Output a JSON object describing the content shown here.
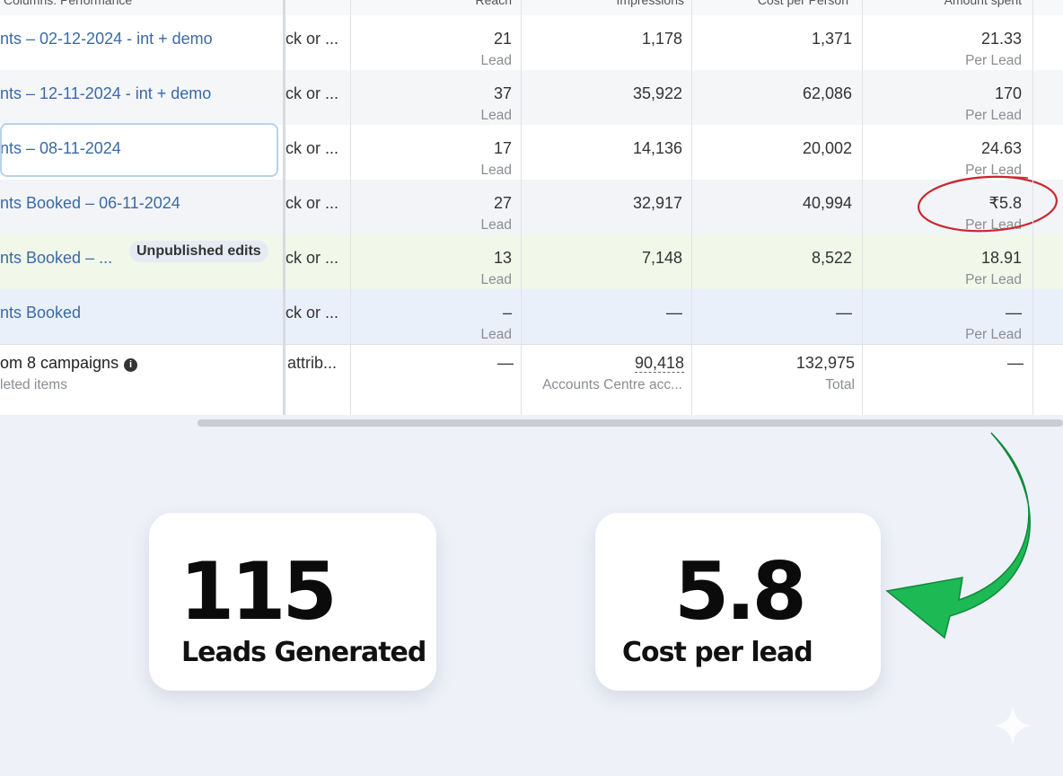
{
  "header": {
    "columns_label": "Columns: Performance",
    "reach_label": "Reach",
    "impressions_label": "Impressions",
    "cost_per_result_label": "Cost per Person",
    "amount_spent_label": "Amount spent"
  },
  "rows": [
    {
      "name": "nts – 02-12-2024 - int + demo",
      "delivery": "ck or ...",
      "results": "21",
      "results_unit": "Lead",
      "impressions": "1,178",
      "reach": "1,371",
      "cost": "21.33",
      "cost_unit": "Per Lead"
    },
    {
      "name": "nts – 12-11-2024 - int + demo",
      "delivery": "ck or ...",
      "results": "37",
      "results_unit": "Lead",
      "impressions": "35,922",
      "reach": "62,086",
      "cost": "170",
      "cost_unit": "Per Lead"
    },
    {
      "name": "nts – 08-11-2024",
      "delivery": "ck or ...",
      "results": "17",
      "results_unit": "Lead",
      "impressions": "14,136",
      "reach": "20,002",
      "cost": "24.63",
      "cost_unit": "Per Lead"
    },
    {
      "name": "nts Booked – 06-11-2024",
      "delivery": "ck or ...",
      "results": "27",
      "results_unit": "Lead",
      "impressions": "32,917",
      "reach": "40,994",
      "cost": "₹5.8",
      "cost_unit": "Per Lead"
    },
    {
      "name": "nts Booked – ...",
      "badge": "Unpublished edits",
      "delivery": "ck or ...",
      "results": "13",
      "results_unit": "Lead",
      "impressions": "7,148",
      "reach": "8,522",
      "cost": "18.91",
      "cost_unit": "Per Lead"
    },
    {
      "name": "nts Booked",
      "delivery": "ck or ...",
      "results": "–",
      "results_unit": "Lead",
      "impressions": "—",
      "reach": "—",
      "cost": "—",
      "cost_unit": "Per Lead"
    }
  ],
  "total": {
    "name": "om 8 campaigns",
    "sub": "leted items",
    "delivery": "attrib...",
    "results": "—",
    "impressions": "90,418",
    "impressions_sub": "Accounts Centre acc...",
    "reach": "132,975",
    "reach_sub": "Total",
    "cost": "—"
  },
  "cards": {
    "leads_value": "115",
    "leads_label": "Leads Generated",
    "cpl_value": "5.8",
    "cpl_label": "Cost per lead"
  },
  "colors": {
    "link_blue": "#3a6aa6",
    "highlight_circle": "#c8292f",
    "arrow_green": "#1db954"
  },
  "icons": [
    "info-icon",
    "curved-arrow-icon",
    "sparkle-icon"
  ]
}
